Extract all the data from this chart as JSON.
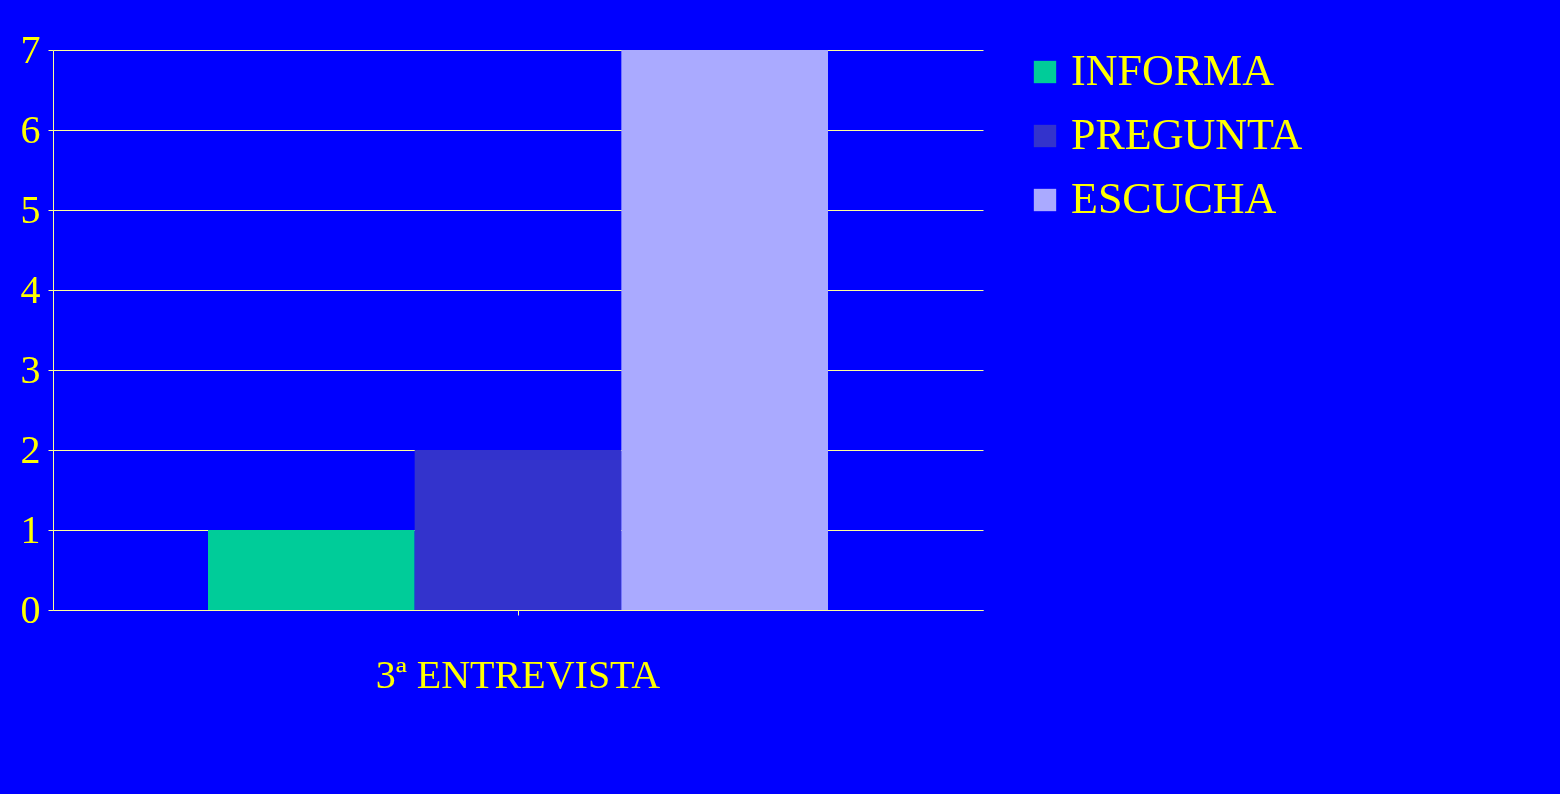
{
  "chart_data": {
    "type": "bar",
    "categories": [
      "3ª ENTREVISTA"
    ],
    "series": [
      {
        "name": "INFORMA",
        "color": "#00cc99",
        "values": [
          1
        ]
      },
      {
        "name": "PREGUNTA",
        "color": "#3333cc",
        "values": [
          2
        ]
      },
      {
        "name": "ESCUCHA",
        "color": "#aaaaff",
        "values": [
          7
        ]
      }
    ],
    "ylim": [
      0,
      7
    ],
    "yticks": [
      0,
      1,
      2,
      3,
      4,
      5,
      6,
      7
    ],
    "grid": true,
    "legend": "right"
  }
}
